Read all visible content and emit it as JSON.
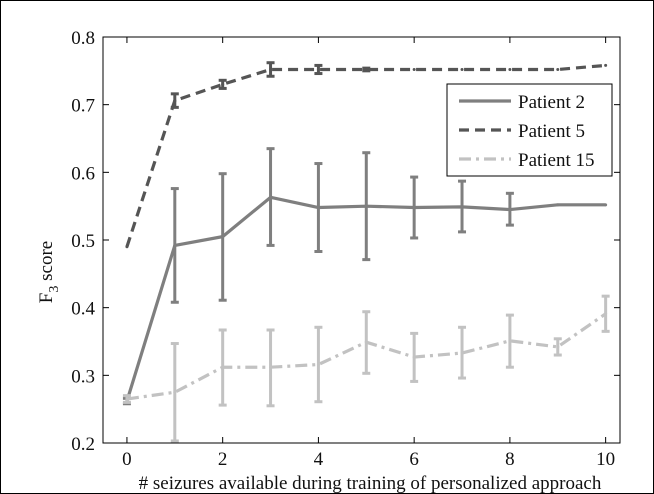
{
  "chart_data": {
    "type": "line",
    "title": "",
    "xlabel": "# seizures available during training of personalized approach",
    "ylabel": "F",
    "ylabel_sub": "3",
    "ylabel_suffix": " score",
    "xlim": [
      -0.5,
      10.3
    ],
    "ylim": [
      0.2,
      0.8
    ],
    "x_ticks": [
      0,
      2,
      4,
      6,
      8,
      10
    ],
    "y_ticks": [
      0.2,
      0.3,
      0.4,
      0.5,
      0.6,
      0.7,
      0.8
    ],
    "x_tick_labels": [
      "0",
      "2",
      "4",
      "6",
      "8",
      "10"
    ],
    "y_tick_labels": [
      "0.2",
      "0.3",
      "0.4",
      "0.5",
      "0.6",
      "0.7",
      "0.8"
    ],
    "grid": false,
    "legend_position": "top-right",
    "x": [
      0,
      1,
      2,
      3,
      4,
      5,
      6,
      7,
      8,
      9,
      10
    ],
    "series": [
      {
        "name": "Patient 2",
        "color": "#7f7f7f",
        "dash": "solid",
        "values": [
          0.262,
          0.492,
          0.505,
          0.563,
          0.548,
          0.55,
          0.548,
          0.549,
          0.545,
          0.552,
          0.552
        ],
        "err_low": [
          0.258,
          0.408,
          0.411,
          0.492,
          0.483,
          0.471,
          0.503,
          0.512,
          0.522,
          0.552,
          0.552
        ],
        "err_high": [
          0.266,
          0.576,
          0.598,
          0.635,
          0.613,
          0.629,
          0.593,
          0.587,
          0.569,
          0.552,
          0.552
        ]
      },
      {
        "name": "Patient 5",
        "color": "#555555",
        "dash": "dash",
        "values": [
          0.49,
          0.706,
          0.73,
          0.752,
          0.752,
          0.752,
          0.752,
          0.752,
          0.752,
          0.752,
          0.758
        ],
        "err_low": [
          0.49,
          0.696,
          0.724,
          0.742,
          0.746,
          0.75,
          0.752,
          0.752,
          0.752,
          0.752,
          0.758
        ],
        "err_high": [
          0.49,
          0.716,
          0.736,
          0.762,
          0.758,
          0.754,
          0.752,
          0.752,
          0.752,
          0.752,
          0.758
        ]
      },
      {
        "name": "Patient 15",
        "color": "#c2c2c2",
        "dash": "dashdot",
        "values": [
          0.265,
          0.275,
          0.312,
          0.312,
          0.316,
          0.349,
          0.327,
          0.333,
          0.351,
          0.342,
          0.391
        ],
        "err_low": [
          0.26,
          0.203,
          0.256,
          0.255,
          0.261,
          0.303,
          0.291,
          0.296,
          0.312,
          0.33,
          0.365
        ],
        "err_high": [
          0.27,
          0.347,
          0.367,
          0.367,
          0.371,
          0.394,
          0.362,
          0.371,
          0.389,
          0.354,
          0.417
        ]
      }
    ]
  }
}
